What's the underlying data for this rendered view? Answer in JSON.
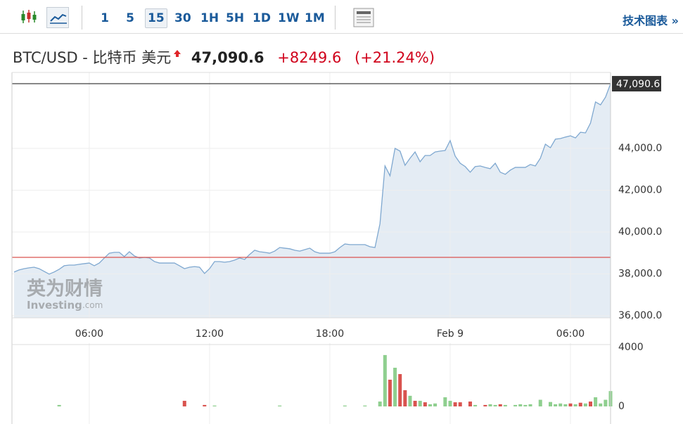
{
  "toolbar": {
    "intervals": [
      "1",
      "5",
      "15",
      "30",
      "1H",
      "5H",
      "1D",
      "1W",
      "1M"
    ],
    "active_interval": 2,
    "link": "技术图表 »"
  },
  "header": {
    "symbol": "BTC/USD - 比特币 美元",
    "price": "47,090.6",
    "change": "+8249.6",
    "change_pct": "(+21.24%)"
  },
  "watermark": {
    "cn": "英为财情",
    "en": "Investing",
    "domain": ".com"
  },
  "chart_data": [
    {
      "type": "line",
      "color": "#7fa8d0",
      "area_color": "#e4ecf4",
      "categories": [
        null,
        null,
        null,
        null,
        null,
        null,
        null,
        null,
        null,
        null,
        null,
        null,
        null,
        null,
        null,
        "06:00",
        null,
        null,
        null,
        null,
        null,
        null,
        null,
        null,
        null,
        null,
        null,
        null,
        null,
        null,
        null,
        null,
        null,
        null,
        null,
        null,
        null,
        null,
        null,
        "12:00",
        null,
        null,
        null,
        null,
        null,
        null,
        null,
        null,
        null,
        null,
        null,
        null,
        null,
        null,
        null,
        null,
        null,
        null,
        null,
        null,
        null,
        null,
        null,
        "18:00",
        null,
        null,
        null,
        null,
        null,
        null,
        null,
        null,
        null,
        null,
        null,
        null,
        null,
        null,
        null,
        null,
        null,
        null,
        null,
        null,
        null,
        null,
        null,
        "Feb 9",
        null,
        null,
        null,
        null,
        null,
        null,
        null,
        null,
        null,
        null,
        null,
        null,
        null,
        null,
        null,
        null,
        null,
        null,
        null,
        null,
        null,
        null,
        null,
        "06:00",
        null,
        null,
        null,
        null,
        null,
        null,
        null,
        null
      ],
      "values": [
        38090,
        38190,
        38250,
        38290,
        38320,
        38250,
        38120,
        37990,
        38090,
        38220,
        38390,
        38420,
        38420,
        38460,
        38490,
        38520,
        38390,
        38520,
        38760,
        38990,
        39030,
        39030,
        38830,
        39060,
        38860,
        38760,
        38790,
        38760,
        38590,
        38520,
        38520,
        38520,
        38520,
        38390,
        38250,
        38320,
        38350,
        38320,
        38020,
        38250,
        38590,
        38590,
        38560,
        38590,
        38660,
        38760,
        38690,
        38930,
        39130,
        39060,
        39030,
        38990,
        39090,
        39260,
        39230,
        39200,
        39130,
        39090,
        39160,
        39230,
        39060,
        38990,
        38990,
        38990,
        39060,
        39260,
        39430,
        39400,
        39400,
        39400,
        39400,
        39300,
        39260,
        40400,
        43160,
        42690,
        44000,
        43870,
        43190,
        43530,
        43830,
        43360,
        43660,
        43660,
        43830,
        43870,
        43900,
        44370,
        43630,
        43290,
        43130,
        42860,
        43130,
        43160,
        43090,
        43030,
        43290,
        42860,
        42760,
        42960,
        43090,
        43090,
        43090,
        43230,
        43160,
        43530,
        44200,
        44030,
        44440,
        44470,
        44540,
        44600,
        44500,
        44770,
        44740,
        45210,
        46220,
        46080,
        46450,
        47090.6
      ],
      "reference_line": 38790,
      "reference_color": "#d9534f",
      "ylim": [
        35900,
        47630
      ],
      "yticks": [
        {
          "value": 36000,
          "label": "36,000.0"
        },
        {
          "value": 38000,
          "label": "38,000.0"
        },
        {
          "value": 40000,
          "label": "40,000.0"
        },
        {
          "value": 42000,
          "label": "42,000.0"
        },
        {
          "value": 44000,
          "label": "44,000.0"
        }
      ],
      "grid": true
    },
    {
      "type": "bar",
      "ylim": [
        0,
        4000
      ],
      "yticks": [
        0,
        4000
      ],
      "series": [
        {
          "color": "#8fcf8f",
          "values": [
            null,
            null,
            null,
            null,
            null,
            null,
            null,
            null,
            null,
            100,
            null,
            null,
            null,
            null,
            null,
            null,
            null,
            null,
            null,
            null,
            null,
            null,
            null,
            null,
            null,
            null,
            null,
            null,
            null,
            null,
            null,
            null,
            null,
            null,
            null,
            null,
            null,
            null,
            null,
            null,
            60,
            null,
            null,
            null,
            null,
            null,
            null,
            null,
            null,
            null,
            null,
            null,
            null,
            60,
            null,
            null,
            null,
            null,
            null,
            null,
            null,
            null,
            null,
            null,
            null,
            null,
            60,
            null,
            null,
            null,
            60,
            null,
            null,
            330,
            3480,
            null,
            2620,
            null,
            null,
            720,
            null,
            380,
            null,
            150,
            200,
            null,
            620,
            380,
            null,
            null,
            null,
            null,
            100,
            null,
            null,
            150,
            100,
            null,
            100,
            null,
            100,
            150,
            100,
            150,
            null,
            450,
            null,
            300,
            150,
            200,
            150,
            null,
            150,
            null,
            200,
            null,
            620,
            200,
            450,
            1040
          ]
        },
        {
          "color": "#d9534f",
          "values": [
            null,
            null,
            null,
            null,
            null,
            null,
            null,
            null,
            null,
            null,
            null,
            null,
            null,
            null,
            null,
            null,
            null,
            null,
            null,
            null,
            null,
            null,
            null,
            null,
            null,
            null,
            null,
            null,
            null,
            null,
            null,
            null,
            null,
            null,
            380,
            null,
            null,
            null,
            100,
            null,
            null,
            null,
            null,
            null,
            null,
            null,
            null,
            null,
            null,
            null,
            null,
            null,
            null,
            null,
            null,
            null,
            null,
            null,
            null,
            null,
            null,
            null,
            null,
            null,
            null,
            null,
            null,
            null,
            null,
            null,
            null,
            null,
            null,
            null,
            null,
            1810,
            null,
            2190,
            1100,
            null,
            380,
            null,
            280,
            null,
            null,
            null,
            null,
            null,
            280,
            280,
            null,
            330,
            null,
            null,
            100,
            null,
            null,
            150,
            null,
            null,
            null,
            null,
            null,
            null,
            null,
            null,
            null,
            null,
            null,
            null,
            null,
            200,
            null,
            250,
            null,
            330,
            null,
            null,
            null,
            null
          ]
        }
      ]
    }
  ]
}
